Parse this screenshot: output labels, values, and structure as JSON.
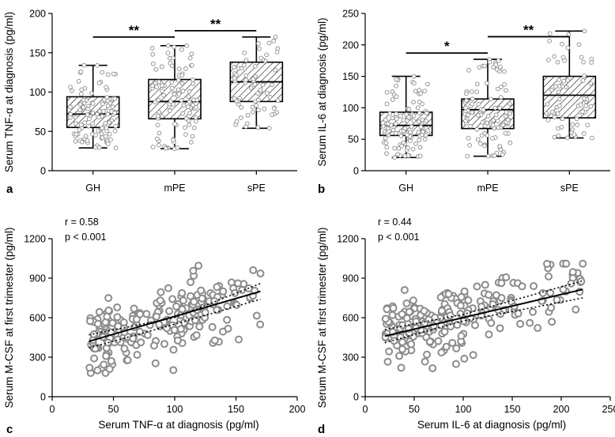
{
  "chart_data": [
    {
      "type": "box",
      "panel_label": "a",
      "ylabel": "Serum TNF-α at diagnosis (pg/ml)",
      "xlabel": "",
      "categories": [
        "GH",
        "mPE",
        "sPE"
      ],
      "ylim": [
        0,
        200
      ],
      "yticks": [
        0,
        50,
        100,
        150,
        200
      ],
      "boxes": [
        {
          "name": "GH",
          "min": 29,
          "q1": 55,
          "median": 72,
          "q3": 94,
          "max": 134
        },
        {
          "name": "mPE",
          "min": 28,
          "q1": 66,
          "median": 88,
          "q3": 116,
          "max": 159
        },
        {
          "name": "sPE",
          "min": 54,
          "q1": 88,
          "median": 113,
          "q3": 138,
          "max": 170
        }
      ],
      "points_per_group": [
        110,
        100,
        65
      ],
      "significance": [
        {
          "from": "GH",
          "to": "mPE",
          "label": "**",
          "y": 170
        },
        {
          "from": "mPE",
          "to": "sPE",
          "label": "**",
          "y": 178
        }
      ]
    },
    {
      "type": "box",
      "panel_label": "b",
      "ylabel": "Serum IL-6 at diagnosis (pg/ml)",
      "xlabel": "",
      "categories": [
        "GH",
        "mPE",
        "sPE"
      ],
      "ylim": [
        0,
        250
      ],
      "yticks": [
        0,
        50,
        100,
        150,
        200,
        250
      ],
      "boxes": [
        {
          "name": "GH",
          "min": 21,
          "q1": 56,
          "median": 72,
          "q3": 93,
          "max": 150
        },
        {
          "name": "mPE",
          "min": 23,
          "q1": 67,
          "median": 97,
          "q3": 114,
          "max": 177
        },
        {
          "name": "sPE",
          "min": 52,
          "q1": 84,
          "median": 120,
          "q3": 150,
          "max": 222
        }
      ],
      "points_per_group": [
        110,
        100,
        65
      ],
      "significance": [
        {
          "from": "GH",
          "to": "mPE",
          "label": "*",
          "y": 187
        },
        {
          "from": "mPE",
          "to": "sPE",
          "label": "**",
          "y": 213
        }
      ]
    },
    {
      "type": "scatter",
      "panel_label": "c",
      "xlabel": "Serum TNF-α at diagnosis (pg/ml)",
      "ylabel": "Serum M-CSF at first trimester (pg/ml)",
      "xlim": [
        0,
        200
      ],
      "ylim": [
        0,
        1200
      ],
      "xticks": [
        0,
        50,
        100,
        150,
        200
      ],
      "yticks": [
        0,
        300,
        600,
        900,
        1200
      ],
      "r_text": "r = 0.58",
      "p_text": "p < 0.001",
      "n_points": 230,
      "fit": {
        "x0": 30,
        "y0": 420,
        "x1": 170,
        "y1": 800
      },
      "ci_band": {
        "upper": [
          [
            30,
            470
          ],
          [
            100,
            600
          ],
          [
            170,
            860
          ]
        ],
        "lower": [
          [
            30,
            370
          ],
          [
            100,
            550
          ],
          [
            170,
            740
          ]
        ]
      }
    },
    {
      "type": "scatter",
      "panel_label": "d",
      "xlabel": "Serum IL-6 at diagnosis (pg/ml)",
      "ylabel": "Serum M-CSF at first trimester (pg/ml)",
      "xlim": [
        0,
        250
      ],
      "ylim": [
        0,
        1200
      ],
      "xticks": [
        0,
        50,
        100,
        150,
        200,
        250
      ],
      "yticks": [
        0,
        300,
        600,
        900,
        1200
      ],
      "r_text": "r = 0.44",
      "p_text": "p < 0.001",
      "n_points": 230,
      "fit": {
        "x0": 20,
        "y0": 460,
        "x1": 222,
        "y1": 815
      },
      "ci_band": {
        "upper": [
          [
            20,
            510
          ],
          [
            100,
            625
          ],
          [
            222,
            880
          ]
        ],
        "lower": [
          [
            20,
            410
          ],
          [
            100,
            575
          ],
          [
            222,
            750
          ]
        ]
      }
    }
  ]
}
